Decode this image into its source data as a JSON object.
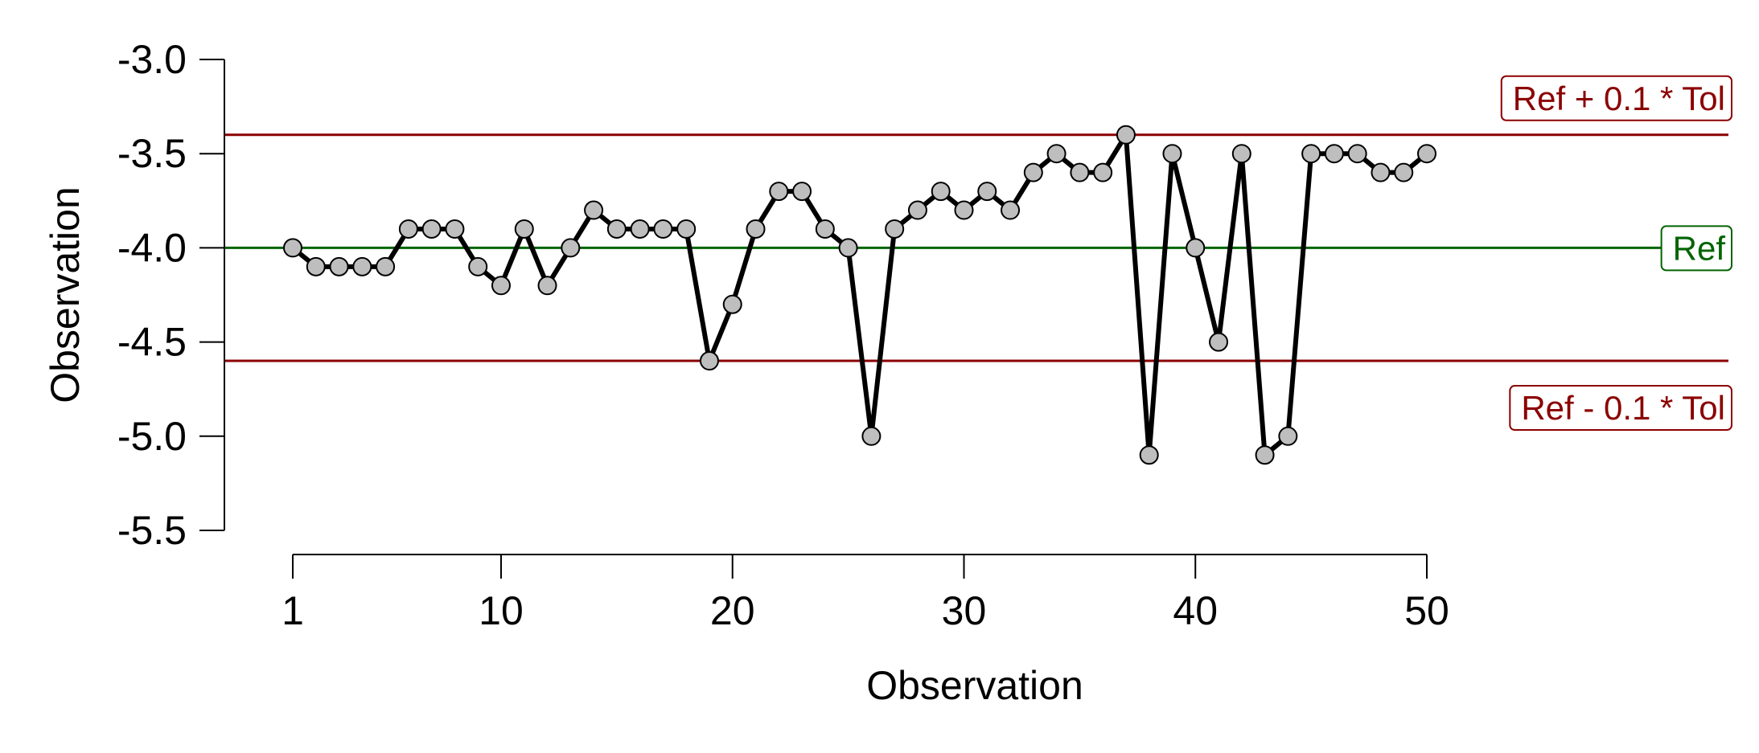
{
  "chart_data": {
    "type": "line",
    "xlabel": "Observation",
    "ylabel": "Observation",
    "ylim": [
      -5.5,
      -3.0
    ],
    "xlim": [
      1,
      50
    ],
    "y_ticks": [
      "-3.0",
      "-3.5",
      "-4.0",
      "-4.5",
      "-5.0",
      "-5.5"
    ],
    "y_tick_values": [
      -3.0,
      -3.5,
      -4.0,
      -4.5,
      -5.0,
      -5.5
    ],
    "x_ticks": [
      "1",
      "10",
      "20",
      "30",
      "40",
      "50"
    ],
    "x_tick_values": [
      1,
      10,
      20,
      30,
      40,
      50
    ],
    "grid": false,
    "series": [
      {
        "x": [
          1,
          2,
          3,
          4,
          5,
          6,
          7,
          8,
          9,
          10,
          11,
          12,
          13,
          14,
          15,
          16,
          17,
          18,
          19,
          20,
          21,
          22,
          23,
          24,
          25,
          26,
          27,
          28,
          29,
          30,
          31,
          32,
          33,
          34,
          35,
          36,
          37,
          38,
          39,
          40,
          41,
          42,
          43,
          44,
          45,
          46,
          47,
          48,
          49,
          50
        ],
        "values": [
          -4.0,
          -4.1,
          -4.1,
          -4.1,
          -4.1,
          -3.9,
          -3.9,
          -3.9,
          -4.1,
          -4.2,
          -3.9,
          -4.2,
          -4.0,
          -3.8,
          -3.9,
          -3.9,
          -3.9,
          -3.9,
          -4.6,
          -4.3,
          -3.9,
          -3.7,
          -3.7,
          -3.9,
          -4.0,
          -5.0,
          -3.9,
          -3.8,
          -3.7,
          -3.8,
          -3.7,
          -3.8,
          -3.6,
          -3.5,
          -3.6,
          -3.6,
          -3.4,
          -5.1,
          -3.5,
          -4.0,
          -4.5,
          -3.5,
          -5.1,
          -5.0,
          -3.5,
          -3.5,
          -3.5,
          -3.6,
          -3.6,
          -3.5
        ]
      }
    ],
    "reference_lines": [
      {
        "label": "Ref + 0.1 * Tol",
        "value": -3.4,
        "color": "#8b0000"
      },
      {
        "label": "Ref",
        "value": -4.0,
        "color": "#006400"
      },
      {
        "label": "Ref - 0.1 * Tol",
        "value": -4.6,
        "color": "#8b0000"
      }
    ],
    "colors": {
      "line": "#000000",
      "point_fill": "#bebebe",
      "point_stroke": "#000000"
    }
  }
}
